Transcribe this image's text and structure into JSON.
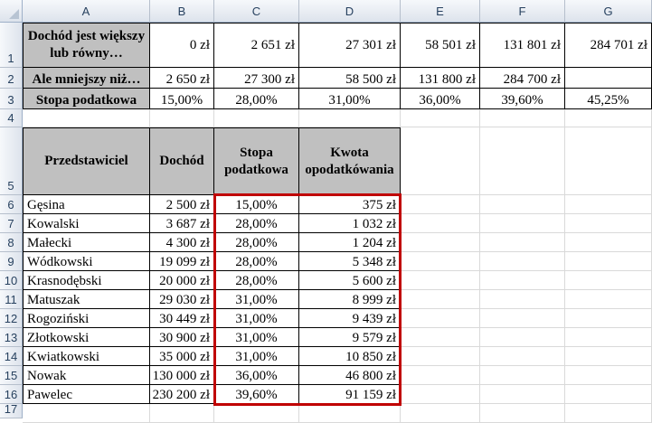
{
  "columns": [
    "A",
    "B",
    "C",
    "D",
    "E",
    "F",
    "G"
  ],
  "rows": [
    "1",
    "2",
    "3",
    "4",
    "5",
    "6",
    "7",
    "8",
    "9",
    "10",
    "11",
    "12",
    "13",
    "14",
    "15",
    "16",
    "17"
  ],
  "tax_table": {
    "label_from": "Dochód jest większy lub równy…",
    "label_to": "Ale mniejszy niż…",
    "label_rate": "Stopa podatkowa",
    "from": [
      "0 zł",
      "2 651 zł",
      "27 301 zł",
      "58 501 zł",
      "131 801 zł",
      "284 701 zł"
    ],
    "to": [
      "2 650 zł",
      "27 300 zł",
      "58 500 zł",
      "131 800 zł",
      "284 700 zł",
      ""
    ],
    "rate": [
      "15,00%",
      "28,00%",
      "31,00%",
      "36,00%",
      "39,60%",
      "45,25%"
    ]
  },
  "reps_table": {
    "headers": [
      "Przedstawiciel",
      "Dochód",
      "Stopa podatkowa",
      "Kwota opodatkówania"
    ],
    "rows": [
      {
        "name": "Gęsina",
        "income": "2 500 zł",
        "rate": "15,00%",
        "amount": "375 zł"
      },
      {
        "name": "Kowalski",
        "income": "3 687 zł",
        "rate": "28,00%",
        "amount": "1 032 zł"
      },
      {
        "name": "Małecki",
        "income": "4 300 zł",
        "rate": "28,00%",
        "amount": "1 204 zł"
      },
      {
        "name": "Wódkowski",
        "income": "19 099 zł",
        "rate": "28,00%",
        "amount": "5 348 zł"
      },
      {
        "name": "Krasnodębski",
        "income": "20 000 zł",
        "rate": "28,00%",
        "amount": "5 600 zł"
      },
      {
        "name": "Matuszak",
        "income": "29 030 zł",
        "rate": "31,00%",
        "amount": "8 999 zł"
      },
      {
        "name": "Rogoziński",
        "income": "30 449 zł",
        "rate": "31,00%",
        "amount": "9 439 zł"
      },
      {
        "name": "Złotkowski",
        "income": "30 900 zł",
        "rate": "31,00%",
        "amount": "9 579 zł"
      },
      {
        "name": "Kwiatkowski",
        "income": "35 000 zł",
        "rate": "31,00%",
        "amount": "10 850 zł"
      },
      {
        "name": "Nowak",
        "income": "130 000 zł",
        "rate": "36,00%",
        "amount": "46 800 zł"
      },
      {
        "name": "Pawelec",
        "income": "230 200 zł",
        "rate": "39,60%",
        "amount": "91 159 zł"
      }
    ]
  },
  "colors": {
    "header_gray": "#c0c0c0",
    "highlight_border": "#c00000",
    "grid": "#d9d9d9"
  }
}
